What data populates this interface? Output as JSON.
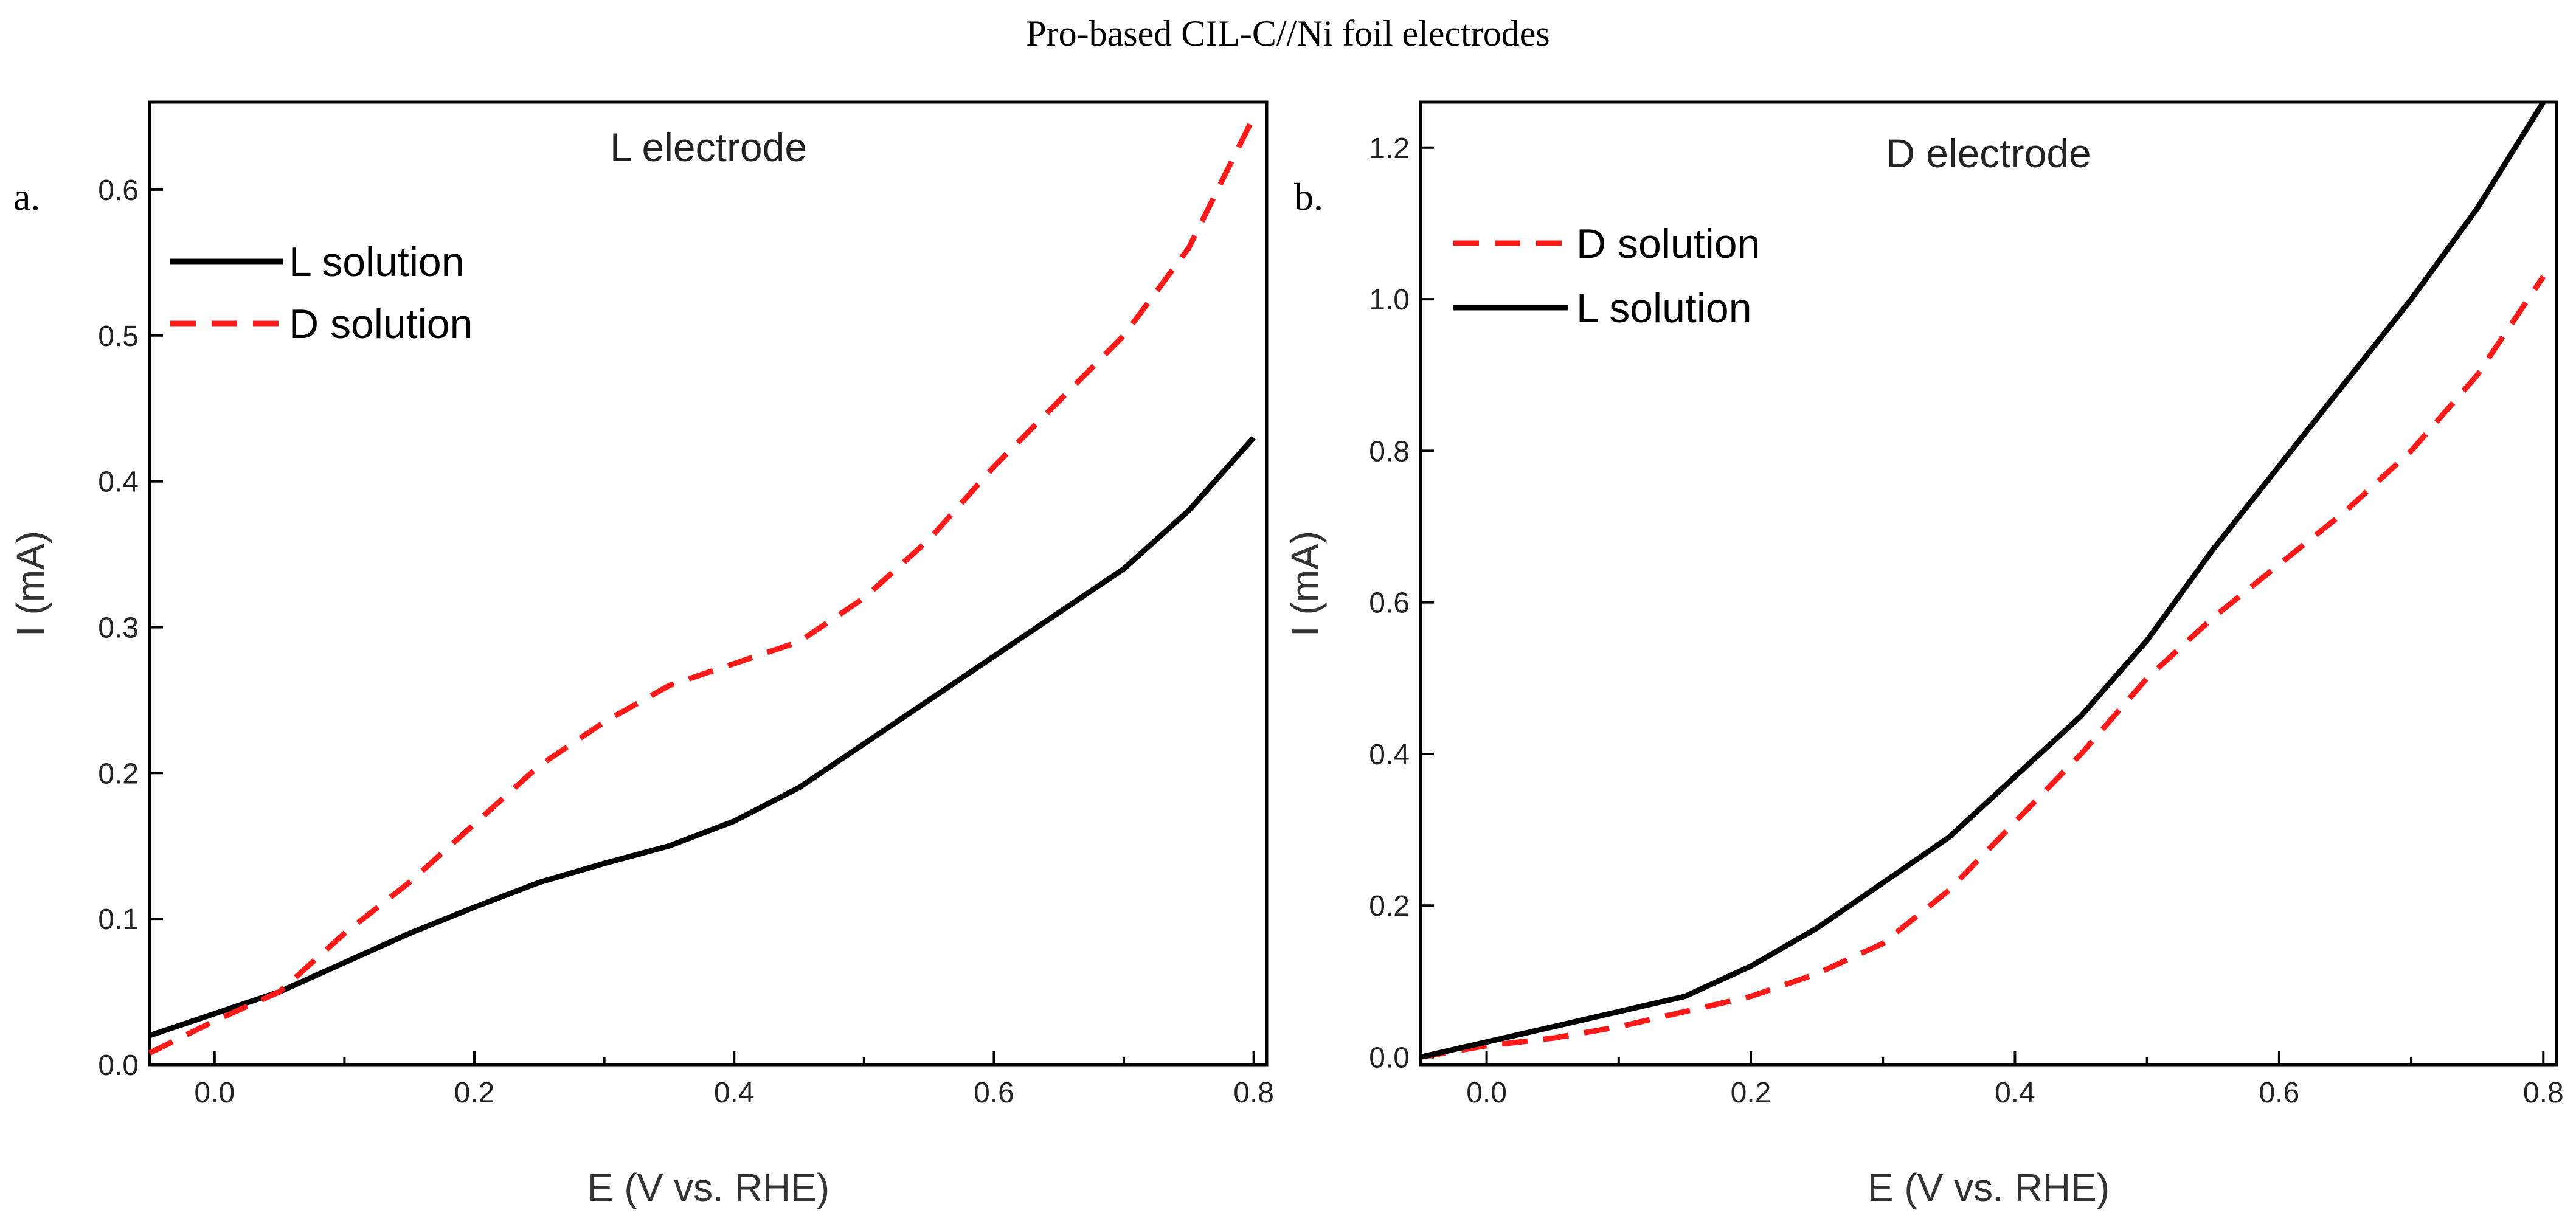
{
  "figure_title": "Pro-based CIL-C//Ni foil electrodes",
  "colors": {
    "black_series": "#000000",
    "red_series": "#ff1a1a"
  },
  "chart_data": [
    {
      "type": "line",
      "panel_label": "a.",
      "title": "L electrode",
      "xlabel": "E (V vs. RHE)",
      "ylabel": "I (mA)",
      "xlim": [
        -0.05,
        0.81
      ],
      "ylim": [
        0.0,
        0.66
      ],
      "xticks": [
        0.0,
        0.2,
        0.4,
        0.6,
        0.8
      ],
      "xtick_labels": [
        "0.0",
        "0.2",
        "0.4",
        "0.6",
        "0.8"
      ],
      "yticks": [
        0.0,
        0.1,
        0.2,
        0.3,
        0.4,
        0.5,
        0.6
      ],
      "ytick_labels": [
        "0.0",
        "0.1",
        "0.2",
        "0.3",
        "0.4",
        "0.5",
        "0.6"
      ],
      "legend_position": "top-left",
      "series": [
        {
          "name": "L solution",
          "style": "solid",
          "color": "#000000",
          "x": [
            -0.05,
            0.0,
            0.05,
            0.1,
            0.15,
            0.2,
            0.25,
            0.3,
            0.35,
            0.4,
            0.45,
            0.5,
            0.55,
            0.6,
            0.65,
            0.7,
            0.75,
            0.8
          ],
          "y": [
            0.02,
            0.035,
            0.05,
            0.07,
            0.09,
            0.108,
            0.125,
            0.138,
            0.15,
            0.167,
            0.19,
            0.22,
            0.25,
            0.28,
            0.31,
            0.34,
            0.38,
            0.43
          ]
        },
        {
          "name": "D solution",
          "style": "dashed",
          "color": "#ff1a1a",
          "x": [
            -0.05,
            0.0,
            0.05,
            0.1,
            0.15,
            0.2,
            0.25,
            0.3,
            0.35,
            0.4,
            0.45,
            0.5,
            0.55,
            0.6,
            0.65,
            0.7,
            0.75,
            0.8
          ],
          "y": [
            0.008,
            0.03,
            0.05,
            0.09,
            0.125,
            0.165,
            0.205,
            0.235,
            0.26,
            0.275,
            0.29,
            0.32,
            0.36,
            0.41,
            0.455,
            0.5,
            0.56,
            0.65
          ]
        }
      ]
    },
    {
      "type": "line",
      "panel_label": "b.",
      "title": "D electrode",
      "xlabel": "E (V vs. RHE)",
      "ylabel": "I (mA)",
      "xlim": [
        -0.05,
        0.81
      ],
      "ylim": [
        -0.01,
        1.26
      ],
      "xticks": [
        0.0,
        0.2,
        0.4,
        0.6,
        0.8
      ],
      "xtick_labels": [
        "0.0",
        "0.2",
        "0.4",
        "0.6",
        "0.8"
      ],
      "yticks": [
        0.0,
        0.2,
        0.4,
        0.6,
        0.8,
        1.0,
        1.2
      ],
      "ytick_labels": [
        "0.0",
        "0.2",
        "0.4",
        "0.6",
        "0.8",
        "1.0",
        "1.2"
      ],
      "legend_position": "top-left",
      "series": [
        {
          "name": "D solution",
          "style": "dashed",
          "color": "#ff1a1a",
          "x": [
            -0.05,
            0.0,
            0.05,
            0.1,
            0.15,
            0.2,
            0.25,
            0.3,
            0.35,
            0.4,
            0.45,
            0.5,
            0.55,
            0.6,
            0.65,
            0.7,
            0.75,
            0.8
          ],
          "y": [
            0.0,
            0.015,
            0.025,
            0.04,
            0.06,
            0.08,
            0.11,
            0.15,
            0.22,
            0.31,
            0.4,
            0.5,
            0.58,
            0.65,
            0.72,
            0.8,
            0.9,
            1.03
          ]
        },
        {
          "name": "L solution",
          "style": "solid",
          "color": "#000000",
          "x": [
            -0.05,
            0.0,
            0.05,
            0.1,
            0.15,
            0.2,
            0.25,
            0.3,
            0.35,
            0.4,
            0.45,
            0.5,
            0.55,
            0.6,
            0.65,
            0.7,
            0.75,
            0.8
          ],
          "y": [
            0.0,
            0.02,
            0.04,
            0.06,
            0.08,
            0.12,
            0.17,
            0.23,
            0.29,
            0.37,
            0.45,
            0.55,
            0.67,
            0.78,
            0.89,
            1.0,
            1.12,
            1.26
          ]
        }
      ]
    }
  ]
}
